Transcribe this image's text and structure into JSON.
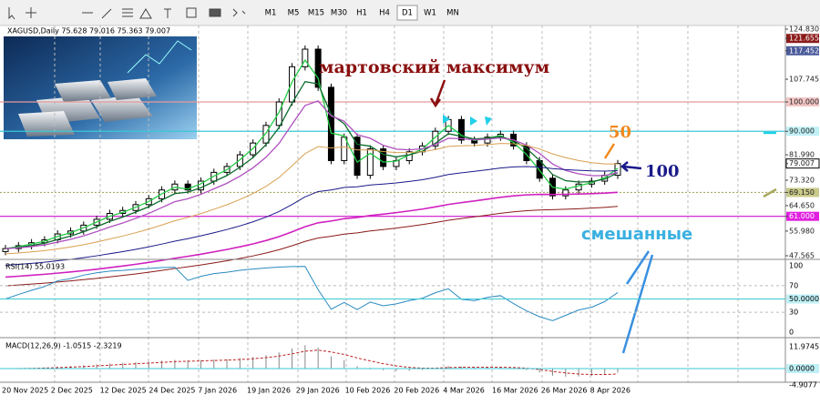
{
  "toolbar": {
    "timeframes": [
      "M1",
      "M5",
      "M15",
      "M30",
      "H1",
      "H4",
      "D1",
      "W1",
      "MN"
    ],
    "active": "D1"
  },
  "chart": {
    "info": "XAGUSD,Daily 75.628 79.016 75.363 79.007",
    "ylim": [
      47.565,
      124.83
    ],
    "price_labels": [
      {
        "value": 124.83,
        "label": "124.830"
      },
      {
        "value": 121.655,
        "bg": "#8b1a1a"
      },
      {
        "value": 117.452,
        "bg": "#4a5a9a"
      },
      {
        "value": 107.745
      },
      {
        "value": 100,
        "label": "100.000",
        "bg": "#f3c6c6",
        "line": "#e89a9a"
      },
      {
        "value": 90,
        "label": "90.000",
        "bg": "#bff0f5",
        "line": "#39c9d6"
      },
      {
        "value": 81.99,
        "label": "81.990"
      },
      {
        "value": 79.007,
        "bg": "#ffffff"
      },
      {
        "value": 73.32,
        "label": "73.320"
      },
      {
        "value": 69.15,
        "label": "69.150",
        "bg": "#c9c98a",
        "line": "#a8a860"
      },
      {
        "value": 64.65,
        "label": "64.650"
      },
      {
        "value": 61,
        "label": "61.000",
        "bg": "#e020e0",
        "line": "#d010d0"
      },
      {
        "value": 55.98,
        "label": "55.980"
      },
      {
        "value": 47.565
      }
    ],
    "closes": [
      50,
      51,
      52,
      53,
      55,
      56,
      58,
      60,
      62,
      63,
      65,
      67,
      70,
      72,
      70,
      73,
      76,
      78,
      82,
      86,
      92,
      100,
      112,
      118,
      105,
      80,
      88,
      75,
      84,
      78,
      80,
      83,
      85,
      90,
      94,
      87,
      86,
      88,
      89,
      85,
      80,
      74,
      68,
      70,
      72,
      73,
      75,
      79
    ],
    "annotations": {
      "march_high": "мартовский максимум",
      "ma50": "50",
      "ma100": "100",
      "mixed": "смешанные"
    }
  },
  "rsi": {
    "label": "RSI(14) 55.0193",
    "ylim": [
      0,
      100
    ],
    "ticks": [
      100,
      70,
      {
        "value": 50,
        "label": "50.0000"
      },
      30,
      0
    ]
  },
  "macd": {
    "label": "MACD(12,26,9) -1.0515 -2.3219",
    "ticks": [
      11.9745,
      {
        "value": 0,
        "label": "0.0000"
      },
      -4.9077
    ]
  },
  "time_axis": [
    "20 Nov 2025",
    "2 Dec 2025",
    "12 Dec 2025",
    "24 Dec 2025",
    "7 Jan 2026",
    "19 Jan 2026",
    "29 Jan 2026",
    "10 Feb 2026",
    "20 Feb 2026",
    "4 Mar 2026",
    "16 Mar 2026",
    "26 Mar 2026",
    "8 Apr 2026"
  ]
}
